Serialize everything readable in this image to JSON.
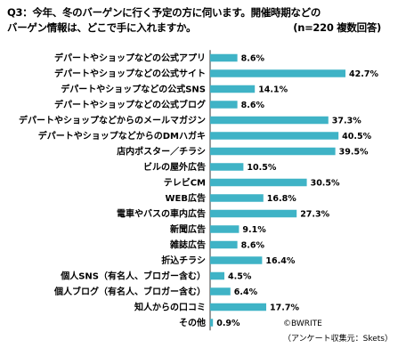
{
  "header": {
    "title_line1": "Q3：今年、冬のバーゲンに行く予定の方に伺います。開催時期などの",
    "title_line2": "バーゲン情報は、どこで手に入れますか。",
    "sample_note": "(n=220 複数回答)"
  },
  "footer": {
    "copyright": "©BWRITE",
    "source": "（アンケート収集元：Skets）"
  },
  "colors": {
    "bar": "#3fb3c6",
    "axis": "#000000"
  },
  "chart_data": {
    "type": "bar",
    "orientation": "horizontal",
    "title": "Q3：今年、冬のバーゲンに行く予定の方に伺います。開催時期などのバーゲン情報は、どこで手に入れますか。",
    "categories": [
      "デパートやショップなどの公式アプリ",
      "デパートやショップなどの公式サイト",
      "デパートやショップなどの公式SNS",
      "デパートやショップなどの公式ブログ",
      "デパートやショップなどからのメールマガジン",
      "デパートやショップなどからのDMハガキ",
      "店内ポスター／チラシ",
      "ビルの屋外広告",
      "テレビCM",
      "WEB広告",
      "電車やバスの車内広告",
      "新聞広告",
      "雑誌広告",
      "折込チラシ",
      "個人SNS（有名人、ブロガー含む）",
      "個人ブログ（有名人、ブロガー含む）",
      "知人からの口コミ",
      "その他"
    ],
    "values": [
      8.6,
      42.7,
      14.1,
      8.6,
      37.3,
      40.5,
      39.5,
      10.5,
      30.5,
      16.8,
      27.3,
      9.1,
      8.6,
      16.4,
      4.5,
      6.4,
      17.7,
      0.9
    ],
    "value_labels": [
      "8.6%",
      "42.7%",
      "14.1%",
      "8.6%",
      "37.3%",
      "40.5%",
      "39.5%",
      "10.5%",
      "30.5%",
      "16.8%",
      "27.3%",
      "9.1%",
      "8.6%",
      "16.4%",
      "4.5%",
      "6.4%",
      "17.7%",
      "0.9%"
    ],
    "unit": "%",
    "xlim": [
      0,
      45
    ],
    "grid": false,
    "legend": "none"
  }
}
